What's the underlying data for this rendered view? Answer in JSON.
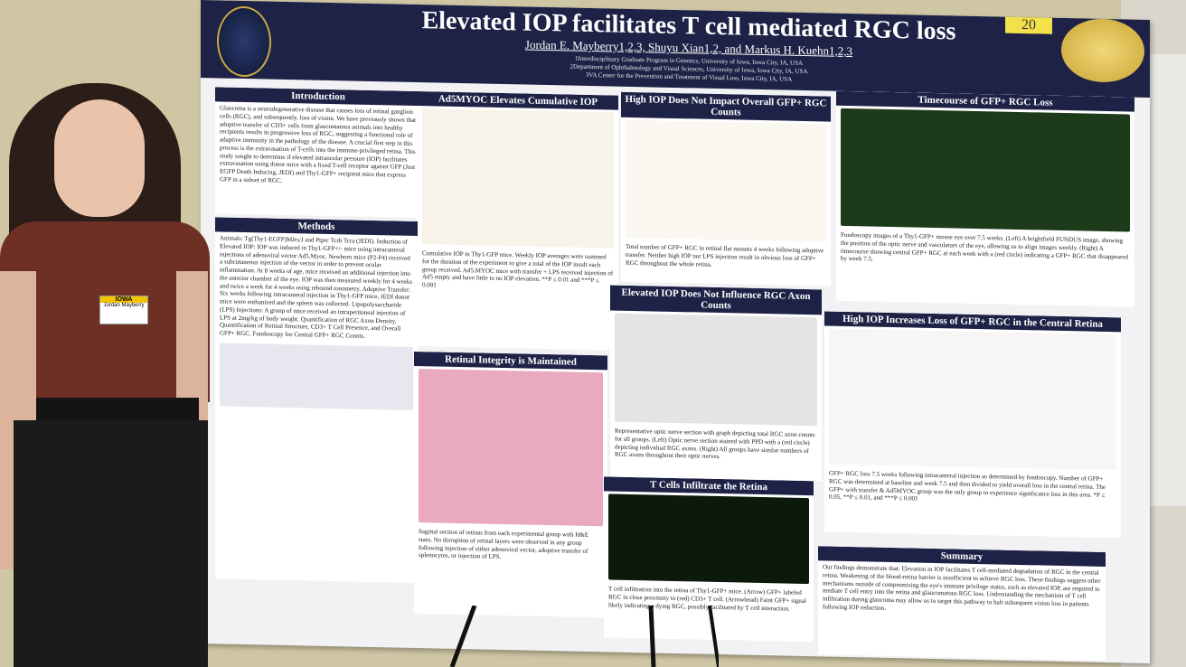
{
  "poster": {
    "title": "Elevated IOP facilitates T cell mediated RGC loss",
    "authors": "Jordan E. Mayberry1,2,3, Shuyu Xian1,2, and Markus H. Kuehn1,2,3",
    "affiliations": [
      "1Interdisciplinary Graduate Program in Genetics, University of Iowa, Iowa City, IA, USA",
      "2Department of Ophthalmology and Visual Sciences, University of Iowa, Iowa City, IA, USA",
      "3VA Center for the Prevention and Treatment of Visual Loss, Iowa City, IA, USA"
    ],
    "badge_number": "20",
    "sections": [
      {
        "heading": "Introduction",
        "body": "Glaucoma is a neurodegenerative disease that causes loss of retinal ganglion cells (RGC), and subsequently, loss of vision. We have previously shown that adoptive transfer of CD3+ cells from glaucomatous animals into healthy recipients results in progressive loss of RGC, suggesting a functional role of adaptive immunity in the pathology of the disease. A crucial first step in this process is the extravasation of T-cells into the immune-privileged retina. This study sought to determine if elevated intraocular pressure (IOP) facilitates extravasation using donor mice with a fixed T-cell receptor against GFP (Just EGFP Death Inducing, JEDI) and Thy1-GFP+ recipient mice that express GFP in a subset of RGC."
      },
      {
        "heading": "Methods",
        "body": "Animals: Tg(Thy1-EGFP)MJrs/J and Ptprc Tcrb Tcra (JEDI). Induction of Elevated IOP: IOP was induced in Thy1-GFP+/- mice using intracameral injections of adenoviral vector Ad5.Myoc. Newborn mice (P2-P4) received a subcutaneous injection of the vector in order to prevent ocular inflammation. At 8 weeks of age, mice received an additional injection into the anterior chamber of the eye. IOP was then measured weekly for 4 weeks and twice a week for 4 weeks using rebound tonometry. Adoptive Transfer: Six weeks following intracameral injection in Thy1-GFP mice, JEDI donor mice were euthanized and the spleen was collected. Lipopolysaccharide (LPS) Injections: A group of mice received an intraperitoneal injection of LPS at 2mg/kg of body weight. Quantification of RGC Axon Density. Quantification of Retinal Structure, CD3+ T Cell Presence, and Overall GFP+ RGC. Fundoscopy for Central GFP+ RGC Counts."
      },
      {
        "heading": "Ad5MYOC Elevates Cumulative IOP",
        "body": "Cumulative IOP in Thy1-GFP mice. Weekly IOP averages were summed for the duration of the experiment to give a total of the IOP insult each group received. Ad5.MYOC mice with transfer + LPS received injection of Ad5 empty and have little to no IOP elevation. **P ≤ 0.01 and ***P ≤ 0.001"
      },
      {
        "heading": "Retinal Integrity is Maintained",
        "body": "Sagittal section of retinas from each experimental group with H&E stain. No disruption of retinal layers were observed in any group following injection of either adenoviral vector, adoptive transfer of splenocytes, or injection of LPS."
      },
      {
        "heading": "High IOP Does Not Impact Overall GFP+ RGC Counts",
        "body": "Total number of GFP+ RGC in retinal flat mounts 4 weeks following adoptive transfer. Neither high IOP nor LPS injection result in obvious loss of GFP+ RGC throughout the whole retina."
      },
      {
        "heading": "Elevated IOP Does Not Influence RGC Axon Counts",
        "body": "Representative optic nerve section with graph depicting total RGC axon counts for all groups. (Left) Optic nerve section stained with PPD with a (red circle) depicting individual RGC axons. (Right) All groups have similar numbers of RGC axons throughout their optic nerves."
      },
      {
        "heading": "T Cells Infiltrate the Retina",
        "body": "T cell infiltration into the retina of Thy1-GFP+ mice. (Arrow) GFP+ labeled RGC in close proximity to (red) CD3+ T cell. (Arrowhead) Faint GFP+ signal likely indicating a dying RGC, possibly facilitated by T cell interaction."
      },
      {
        "heading": "Timecourse of GFP+ RGC Loss",
        "body": "Fundoscopy images of a Thy1-GFP+ mouse eye over 7.5 weeks. (Left) A brightfield FUNDUS image, showing the position of the optic nerve and vasculature of the eye, allowing us to align images weekly. (Right) A timecourse showing central GFP+ RGC at each week with a (red circle) indicating a GFP+ RGC that disappeared by week 7.5."
      },
      {
        "heading": "High IOP Increases Loss of GFP+ RGC in the Central Retina",
        "body": "GFP+ RGC loss 7.5 weeks following intracameral injection as determined by fundoscopy. Number of GFP+ RGC was determined at baseline and week 7.5 and then divided to yield overall loss in the central retina. The GFP+ with transfer & Ad5MYOC group was the only group to experience significance loss in this area. *P ≤ 0.05, **P ≤ 0.01, and ***P ≤ 0.001"
      },
      {
        "heading": "Summary",
        "body": "Our findings demonstrate that: Elevation in IOP facilitates T cell-mediated degradation of RGC in the central retina. Weakening of the blood-retina barrier is insufficient to achieve RGC loss. These findings suggest other mechanisms outside of compromising the eye's immune privilege status, such as elevated IOP, are required to mediate T cell entry into the retina and glaucomatous RGC loss. Understanding the mechanism of T cell infiltration during glaucoma may allow us to target this pathway to halt subsequent vision loss in patients following IOP reduction."
      }
    ]
  },
  "name_tag": {
    "org": "IOWA",
    "name": "Jordan Mayberry"
  }
}
